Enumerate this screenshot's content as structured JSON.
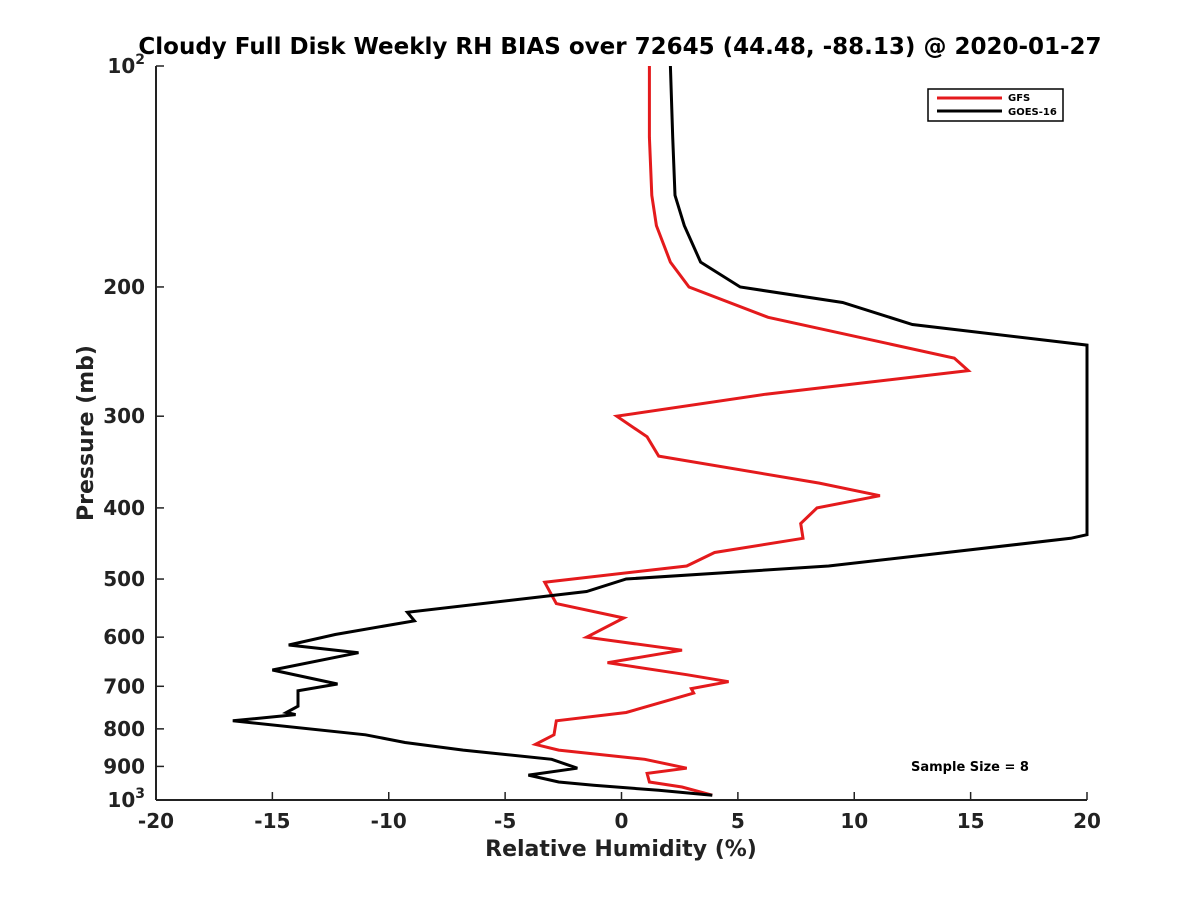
{
  "chart_data": {
    "type": "line",
    "title": "Cloudy Full Disk Weekly RH BIAS over 72645 (44.48, -88.13) @ 2020-01-27",
    "xlabel": "Relative Humidity (%)",
    "ylabel": "Pressure (mb)",
    "xlim": [
      -20,
      20
    ],
    "ylim": [
      100,
      1000
    ],
    "yscale": "log",
    "y_reversed": true,
    "grid": false,
    "legend_position": "top-right",
    "x_ticks": [
      -20,
      -15,
      -10,
      -5,
      0,
      5,
      10,
      15,
      20
    ],
    "y_ticks": [
      {
        "value": 100,
        "base": "10",
        "exp": "2"
      },
      {
        "value": 200,
        "label": "200"
      },
      {
        "value": 300,
        "label": "300"
      },
      {
        "value": 400,
        "label": "400"
      },
      {
        "value": 500,
        "label": "500"
      },
      {
        "value": 600,
        "label": "600"
      },
      {
        "value": 700,
        "label": "700"
      },
      {
        "value": 800,
        "label": "800"
      },
      {
        "value": 900,
        "label": "900"
      },
      {
        "value": 1000,
        "base": "10",
        "exp": "3"
      }
    ],
    "annotation": "Sample Size = 8",
    "series": [
      {
        "name": "GFS",
        "color": "#e41a1c",
        "points": [
          [
            1.2,
            100
          ],
          [
            1.2,
            125
          ],
          [
            1.3,
            150
          ],
          [
            1.5,
            165
          ],
          [
            2.1,
            185
          ],
          [
            2.9,
            200
          ],
          [
            6.3,
            220
          ],
          [
            14.3,
            250
          ],
          [
            14.9,
            260
          ],
          [
            6.2,
            280
          ],
          [
            -0.2,
            300
          ],
          [
            1.1,
            320
          ],
          [
            1.6,
            340
          ],
          [
            8.5,
            370
          ],
          [
            11.1,
            385
          ],
          [
            8.4,
            400
          ],
          [
            7.7,
            420
          ],
          [
            7.8,
            440
          ],
          [
            4.0,
            460
          ],
          [
            2.8,
            480
          ],
          [
            -3.3,
            505
          ],
          [
            -2.8,
            540
          ],
          [
            0.1,
            565
          ],
          [
            -1.5,
            600
          ],
          [
            2.6,
            625
          ],
          [
            -0.6,
            650
          ],
          [
            2.8,
            675
          ],
          [
            4.6,
            690
          ],
          [
            3.0,
            705
          ],
          [
            3.1,
            715
          ],
          [
            0.2,
            760
          ],
          [
            -2.8,
            780
          ],
          [
            -2.9,
            815
          ],
          [
            -3.7,
            840
          ],
          [
            -2.7,
            855
          ],
          [
            1.0,
            880
          ],
          [
            2.8,
            905
          ],
          [
            1.1,
            920
          ],
          [
            1.2,
            945
          ],
          [
            2.6,
            960
          ],
          [
            3.9,
            985
          ]
        ]
      },
      {
        "name": "GOES-16",
        "color": "#000000",
        "points": [
          [
            2.1,
            100
          ],
          [
            2.2,
            125
          ],
          [
            2.3,
            150
          ],
          [
            2.7,
            165
          ],
          [
            3.4,
            185
          ],
          [
            5.1,
            200
          ],
          [
            9.5,
            210
          ],
          [
            12.5,
            225
          ],
          [
            20.0,
            240
          ],
          [
            20.0,
            435
          ],
          [
            19.3,
            440
          ],
          [
            8.9,
            480
          ],
          [
            0.2,
            500
          ],
          [
            -1.5,
            520
          ],
          [
            -9.2,
            555
          ],
          [
            -8.9,
            570
          ],
          [
            -12.3,
            595
          ],
          [
            -14.3,
            615
          ],
          [
            -11.3,
            630
          ],
          [
            -15.0,
            665
          ],
          [
            -12.2,
            695
          ],
          [
            -13.9,
            710
          ],
          [
            -13.9,
            745
          ],
          [
            -14.4,
            760
          ],
          [
            -14.0,
            765
          ],
          [
            -16.7,
            780
          ],
          [
            -11.0,
            815
          ],
          [
            -9.3,
            835
          ],
          [
            -6.8,
            855
          ],
          [
            -3.0,
            880
          ],
          [
            -1.9,
            905
          ],
          [
            -4.0,
            925
          ],
          [
            -2.7,
            945
          ],
          [
            -1.2,
            955
          ],
          [
            1.6,
            970
          ],
          [
            3.9,
            985
          ]
        ]
      }
    ]
  }
}
